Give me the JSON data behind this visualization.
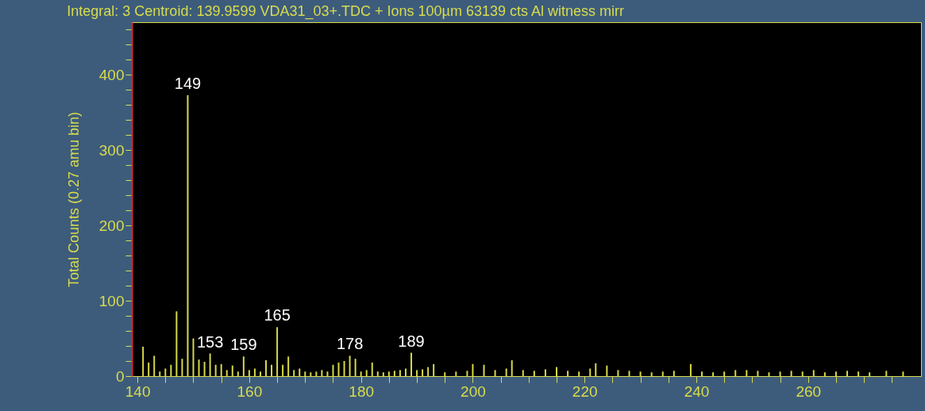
{
  "chart_data": {
    "type": "bar",
    "title": "Integral: 3   Centroid: 139.9599  VDA31_03+.TDC + Ions 100µm 63139 cts Al witness mirr",
    "ylabel": "Total Counts (0.27 amu bin)",
    "x": [
      141,
      142,
      143,
      144,
      145,
      146,
      147,
      148,
      149,
      150,
      151,
      152,
      153,
      154,
      155,
      156,
      157,
      158,
      159,
      160,
      161,
      162,
      163,
      164,
      165,
      166,
      167,
      168,
      169,
      170,
      171,
      172,
      173,
      174,
      175,
      176,
      177,
      178,
      179,
      180,
      181,
      182,
      183,
      184,
      185,
      186,
      187,
      188,
      189,
      190,
      191,
      192,
      193,
      195,
      197,
      199,
      200,
      202,
      204,
      206,
      207,
      209,
      211,
      213,
      215,
      217,
      219,
      221,
      222,
      224,
      226,
      228,
      230,
      232,
      234,
      236,
      239,
      241,
      243,
      245,
      247,
      249,
      251,
      253,
      255,
      257,
      259,
      261,
      263,
      265,
      267,
      269,
      271,
      274,
      277
    ],
    "series": [
      {
        "color": "#d6d84a",
        "values": [
          39,
          18,
          27,
          6,
          10,
          15,
          86,
          23,
          373,
          50,
          22,
          19,
          30,
          15,
          16,
          8,
          14,
          6,
          26,
          8,
          10,
          6,
          21,
          15,
          65,
          15,
          26,
          8,
          10,
          6,
          5,
          6,
          8,
          6,
          15,
          18,
          20,
          27,
          23,
          6,
          8,
          18,
          6,
          5,
          6,
          7,
          8,
          10,
          31,
          8,
          9,
          12,
          16,
          5,
          6,
          7,
          16,
          15,
          8,
          10,
          21,
          8,
          7,
          9,
          12,
          7,
          6,
          10,
          17,
          14,
          8,
          7,
          6,
          5,
          6,
          7,
          16,
          6,
          5,
          6,
          8,
          8,
          7,
          5,
          6,
          7,
          6,
          8,
          5,
          6,
          7,
          6,
          5,
          7,
          6
        ]
      }
    ],
    "xlim": [
      139.7,
      279.5
    ],
    "xticks": [
      140,
      {
        "value": 145,
        "label": null
      },
      {
        "value": 150,
        "label": null
      },
      {
        "value": 155,
        "label": null
      },
      160,
      {
        "value": 165,
        "label": null
      },
      {
        "value": 170,
        "label": null
      },
      {
        "value": 175,
        "label": null
      },
      180,
      {
        "value": 185,
        "label": null
      },
      {
        "value": 190,
        "label": null
      },
      {
        "value": 195,
        "label": null
      },
      200,
      {
        "value": 205,
        "label": null
      },
      {
        "value": 210,
        "label": null
      },
      {
        "value": 215,
        "label": null
      },
      220,
      {
        "value": 225,
        "label": null
      },
      {
        "value": 230,
        "label": null
      },
      {
        "value": 235,
        "label": null
      },
      240,
      {
        "value": 245,
        "label": null
      },
      {
        "value": 250,
        "label": null
      },
      {
        "value": 255,
        "label": null
      },
      260,
      {
        "value": 265,
        "label": null
      },
      {
        "value": 270,
        "label": null
      },
      {
        "value": 275,
        "label": null
      }
    ],
    "ylim": [
      0,
      470
    ],
    "yticks": [
      0,
      {
        "value": 20,
        "label": null
      },
      {
        "value": 40,
        "label": null
      },
      {
        "value": 60,
        "label": null
      },
      {
        "value": 80,
        "label": null
      },
      100,
      {
        "value": 120,
        "label": null
      },
      {
        "value": 140,
        "label": null
      },
      {
        "value": 160,
        "label": null
      },
      {
        "value": 180,
        "label": null
      },
      200,
      {
        "value": 220,
        "label": null
      },
      {
        "value": 240,
        "label": null
      },
      {
        "value": 260,
        "label": null
      },
      {
        "value": 280,
        "label": null
      },
      300,
      {
        "value": 320,
        "label": null
      },
      {
        "value": 340,
        "label": null
      },
      {
        "value": 360,
        "label": null
      },
      {
        "value": 380,
        "label": null
      },
      400,
      {
        "value": 420,
        "label": null
      },
      {
        "value": 440,
        "label": null
      },
      {
        "value": 460,
        "label": null
      }
    ],
    "annotations": [
      {
        "text": "149",
        "x": 149,
        "y": 373
      },
      {
        "text": "153",
        "x": 153,
        "y": 30
      },
      {
        "text": "159",
        "x": 159,
        "y": 26
      },
      {
        "text": "165",
        "x": 165,
        "y": 65
      },
      {
        "text": "178",
        "x": 178,
        "y": 27
      },
      {
        "text": "189",
        "x": 189,
        "y": 31
      }
    ],
    "grid": false
  }
}
